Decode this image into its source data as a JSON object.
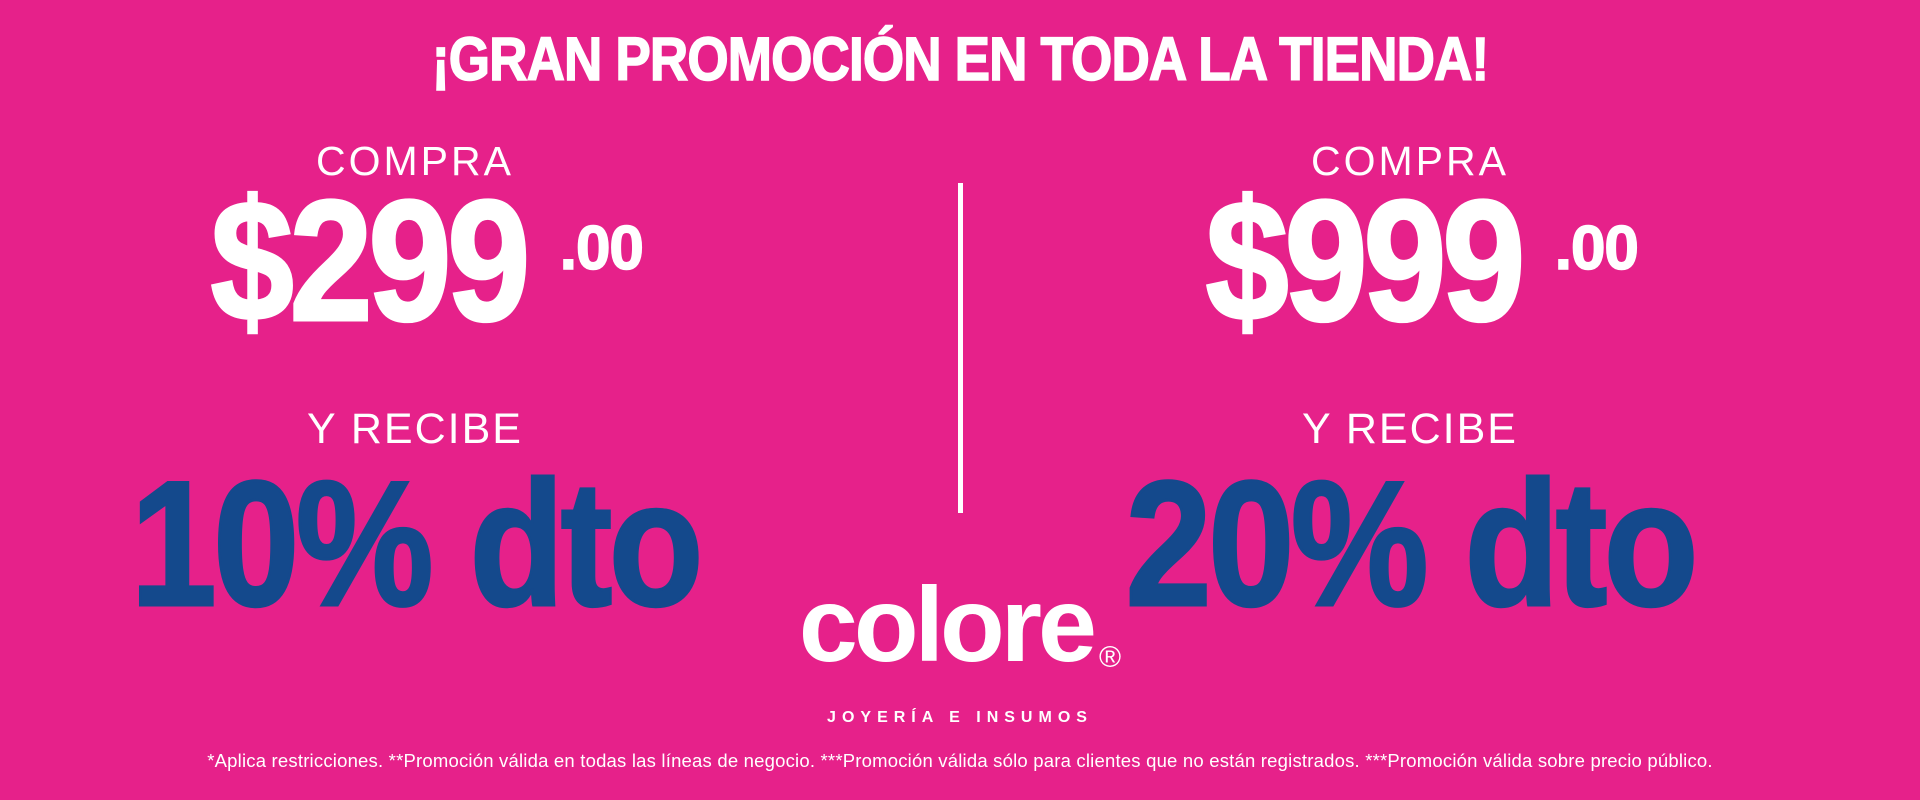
{
  "theme": {
    "background_pink": "#E6218A",
    "discount_blue": "#14498C",
    "text_white": "#FFFFFF"
  },
  "headline": "¡GRAN PROMOCIÓN EN TODA LA TIENDA!",
  "offers": [
    {
      "buy_label": "COMPRA",
      "amount": "$299",
      "cents": ".00",
      "receive_label": "Y RECIBE",
      "discount_text": "10% dto"
    },
    {
      "buy_label": "COMPRA",
      "amount": "$999",
      "cents": ".00",
      "receive_label": "Y RECIBE",
      "discount_text": "20% dto"
    }
  ],
  "logo": {
    "name": "colore",
    "registered_mark": "®",
    "tagline": "JOYERÍA E INSUMOS"
  },
  "fine_print": "*Aplica restricciones. **Promoción válida en todas las líneas de negocio. ***Promoción válida sólo para clientes que no están registrados. ***Promoción válida sobre precio público."
}
